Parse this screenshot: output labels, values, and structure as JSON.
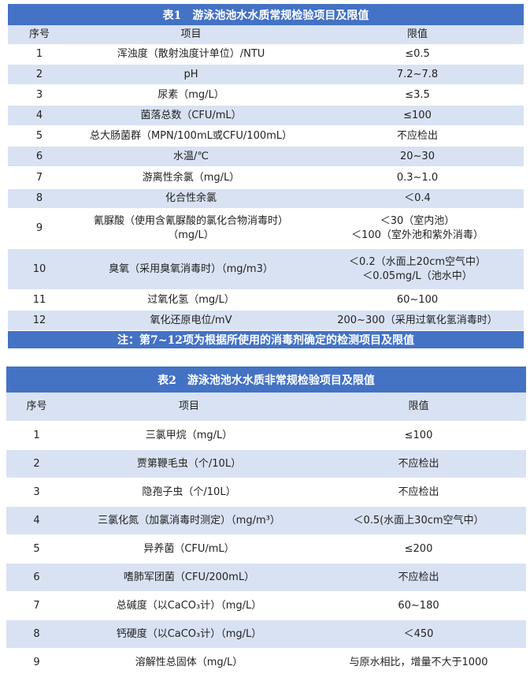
{
  "tables": [
    {
      "title": "表1　游泳池池水水质常规检验项目及限值",
      "header": [
        "序号",
        "项目",
        "限值"
      ],
      "rows": [
        [
          "1",
          "浑浊度（散射浊度计单位）/NTU",
          "≤0.5"
        ],
        [
          "2",
          "pH",
          "7.2~7.8"
        ],
        [
          "3",
          "尿素（mg/L）",
          "≤3.5"
        ],
        [
          "4",
          "菌落总数（CFU/mL）",
          "≤100"
        ],
        [
          "5",
          "总大肠菌群（MPN/100mL或CFU/100mL）",
          "不应检出"
        ],
        [
          "6",
          "水温/℃",
          "20~30"
        ],
        [
          "7",
          "游离性余氯（mg/L）",
          "0.3~1.0"
        ],
        [
          "8",
          "化合性余氯",
          "＜0.4"
        ],
        [
          "9",
          "氰脲酸（使用含氰脲酸的氯化合物消毒时）\n（mg/L）",
          "＜30（室内池）\n＜100（室外池和紫外消毒）"
        ],
        [
          "10",
          "臭氧（采用臭氧消毒时）（mg/m3）",
          "＜0.2（水面上20cm空气中）\n＜0.05mg/L（池水中）"
        ],
        [
          "11",
          "过氧化氢（mg/L）",
          "60~100"
        ],
        [
          "12",
          "氧化还原电位/mV",
          "200~300（采用过氧化氢消毒时）"
        ]
      ],
      "note": "注：第7~12项为根据所使用的消毒剂确定的检测项目及限值"
    },
    {
      "title": "表2　游泳池池水水质非常规检验项目及限值",
      "header": [
        "序号",
        "项目",
        "限值"
      ],
      "rows": [
        [
          "1",
          "三氯甲烷（mg/L）",
          "≤100"
        ],
        [
          "2",
          "贾第鞭毛虫（个/10L）",
          "不应检出"
        ],
        [
          "3",
          "隐孢子虫（个/10L）",
          "不应检出"
        ],
        [
          "4",
          "三氯化氮（加氯消毒时测定）（mg/m³）",
          "＜0.5(水面上30cm空气中）"
        ],
        [
          "5",
          "异养菌（CFU/mL）",
          "≤200"
        ],
        [
          "6",
          "嗜肺军团菌（CFU/200mL）",
          "不应检出"
        ],
        [
          "7",
          "总碱度（以CaCO₃计）（mg/L）",
          "60~180"
        ],
        [
          "8",
          "钙硬度（以CaCO₃计）（mg/L）",
          "＜450"
        ],
        [
          "9",
          "溶解性总固体（mg/L）",
          "与原水相比，增量不大于1000"
        ]
      ]
    }
  ]
}
